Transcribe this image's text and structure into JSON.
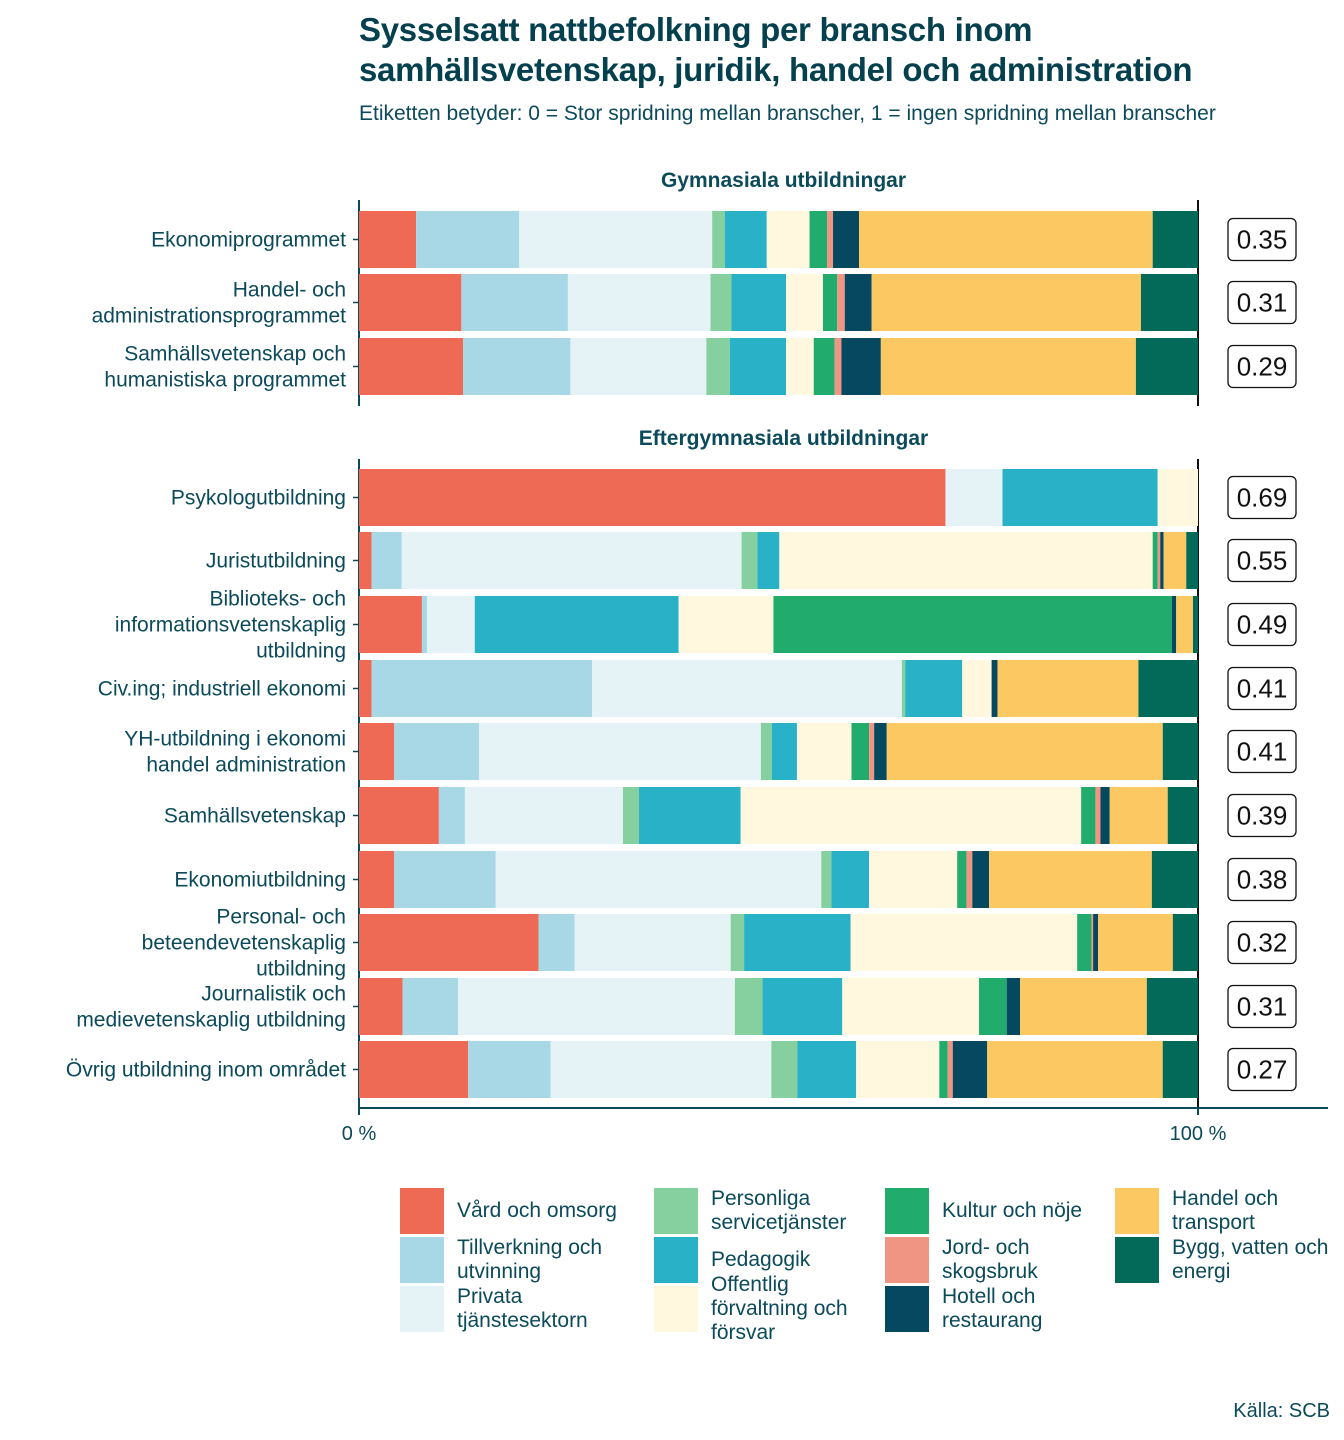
{
  "title": "Sysselsatt nattbefolkning per bransch inom samhällsvetenskap, juridik, handel och administration",
  "subtitle": "Etiketten betyder: 0 = Stor spridning mellan branscher, 1 = ingen spridning mellan branscher",
  "source": "Källa: SCB",
  "colors": {
    "Vård och omsorg": "#ee6a55",
    "Tillverkning och utvinning": "#a8d8e6",
    "Privata tjänstesektorn": "#e6f3f6",
    "Personliga servicetjänster": "#86cf9e",
    "Pedagogik": "#29b1c7",
    "Offentlig förvaltning och försvar": "#fff8de",
    "Kultur och nöje": "#21ac6d",
    "Jord- och skogsbruk": "#f09484",
    "Hotell och restaurang": "#05485f",
    "Handel och transport": "#fbc862",
    "Bygg, vatten och energi": "#036a5a"
  },
  "legend": [
    "Vård och omsorg",
    "Tillverkning och utvinning",
    "Privata tjänstesektorn",
    "Personliga servicetjänster",
    "Pedagogik",
    "Offentlig förvaltning och försvar",
    "Kultur och nöje",
    "Jord- och skogsbruk",
    "Hotell och restaurang",
    "Handel och transport",
    "Bygg, vatten och energi"
  ],
  "chart_data": {
    "type": "bar",
    "orientation": "horizontal-stacked-100",
    "xlim": [
      0,
      100
    ],
    "x_ticks": [
      "0 %",
      "100 %"
    ],
    "series_order": [
      "Vård och omsorg",
      "Tillverkning och utvinning",
      "Privata tjänstesektorn",
      "Personliga servicetjänster",
      "Pedagogik",
      "Offentlig förvaltning och försvar",
      "Kultur och nöje",
      "Jord- och skogsbruk",
      "Hotell och restaurang",
      "Handel och transport",
      "Bygg, vatten och energi"
    ],
    "panels": [
      {
        "title": "Gymnasiala utbildningar",
        "rows": [
          {
            "label": "Ekonomiprogrammet",
            "index": "0.35",
            "values": [
              6.8,
              12.3,
              23.0,
              1.5,
              5.0,
              5.1,
              2.1,
              0.7,
              3.1,
              35.0,
              5.4
            ]
          },
          {
            "label": "Handel- och administrationsprogrammet",
            "index": "0.31",
            "values": [
              12.2,
              12.7,
              17.0,
              2.5,
              6.5,
              4.4,
              1.7,
              0.9,
              3.2,
              32.1,
              6.8
            ]
          },
          {
            "label": "Samhällsvetenskap och humanistiska programmet",
            "index": "0.29",
            "values": [
              12.4,
              12.8,
              16.2,
              2.8,
              6.7,
              3.3,
              2.5,
              0.8,
              4.7,
              30.4,
              7.4
            ]
          }
        ]
      },
      {
        "title": "Eftergymnasiala utbildningar",
        "rows": [
          {
            "label": "Psykologutbildning",
            "index": "0.69",
            "values": [
              69.9,
              0,
              6.8,
              0,
              18.5,
              4.8,
              0,
              0,
              0,
              0,
              0
            ]
          },
          {
            "label": "Juristutbildning",
            "index": "0.55",
            "values": [
              1.5,
              3.6,
              40.5,
              1.9,
              2.6,
              44.5,
              0.6,
              0.3,
              0.4,
              2.7,
              1.4
            ]
          },
          {
            "label": "Biblioteks- och informationsvetenskaplig utbildning",
            "index": "0.49",
            "values": [
              7.5,
              0.6,
              5.7,
              0,
              24.3,
              11.3,
              47.5,
              0,
              0.5,
              2.0,
              0.6
            ]
          },
          {
            "label": "Civ.ing; industriell ekonomi",
            "index": "0.41",
            "values": [
              1.5,
              26.3,
              36.9,
              0.4,
              6.8,
              3.5,
              0,
              0,
              0.7,
              16.8,
              7.1
            ]
          },
          {
            "label": "YH-utbildning i ekonomi handel administration",
            "index": "0.41",
            "values": [
              4.2,
              10.1,
              33.6,
              1.3,
              3.0,
              6.5,
              2.1,
              0.6,
              1.5,
              32.9,
              4.2
            ]
          },
          {
            "label": "Samhällsvetenskap",
            "index": "0.39",
            "values": [
              9.5,
              3.1,
              18.8,
              1.9,
              12.1,
              40.5,
              1.7,
              0.6,
              1.1,
              6.9,
              3.6
            ]
          },
          {
            "label": "Ekonomiutbildning",
            "index": "0.38",
            "values": [
              4.2,
              12.1,
              38.8,
              1.2,
              4.5,
              10.5,
              1.1,
              0.7,
              2.0,
              19.4,
              5.5
            ]
          },
          {
            "label": "Personal- och beteendevetenskaplig utbildning",
            "index": "0.32",
            "values": [
              21.4,
              4.3,
              18.6,
              1.6,
              12.7,
              27.0,
              1.7,
              0.2,
              0.6,
              8.9,
              3.0
            ]
          },
          {
            "label": "Journalistik och medievetenskaplig utbildning",
            "index": "0.31",
            "values": [
              5.2,
              6.6,
              33.0,
              3.3,
              9.5,
              16.3,
              3.3,
              0,
              1.6,
              15.1,
              6.1
            ]
          },
          {
            "label": "Övrig utbildning inom området",
            "index": "0.27",
            "values": [
              13.0,
              9.8,
              26.3,
              3.1,
              7.0,
              9.9,
              1.0,
              0.6,
              4.1,
              20.9,
              4.2
            ]
          }
        ]
      }
    ]
  }
}
